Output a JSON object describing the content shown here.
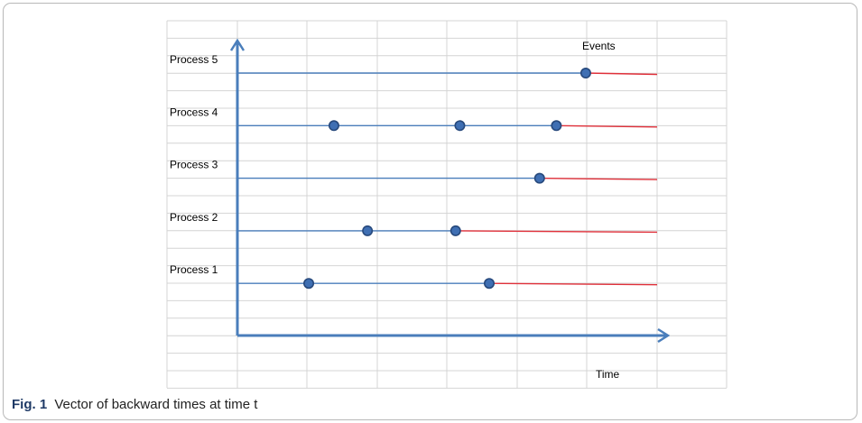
{
  "figure": {
    "caption_label": "Fig. 1",
    "caption_text": "Vector of backward times at time t"
  },
  "diagram": {
    "events_label": "Events",
    "time_label": "Time",
    "processes": [
      {
        "label": "Process 5",
        "events": [
          0.83
        ]
      },
      {
        "label": "Process 4",
        "events": [
          0.23,
          0.53,
          0.76
        ]
      },
      {
        "label": "Process 3",
        "events": [
          0.72
        ]
      },
      {
        "label": "Process 2",
        "events": [
          0.31,
          0.52
        ]
      },
      {
        "label": "Process 1",
        "events": [
          0.17,
          0.6
        ]
      }
    ],
    "colors": {
      "axis": "#4a7ebb",
      "timeline": "#4a7ebb",
      "backward_time": "#e0303a",
      "event_fill": "#3f6fb3",
      "event_stroke": "#27497c",
      "grid": "#d4d4d4"
    }
  }
}
